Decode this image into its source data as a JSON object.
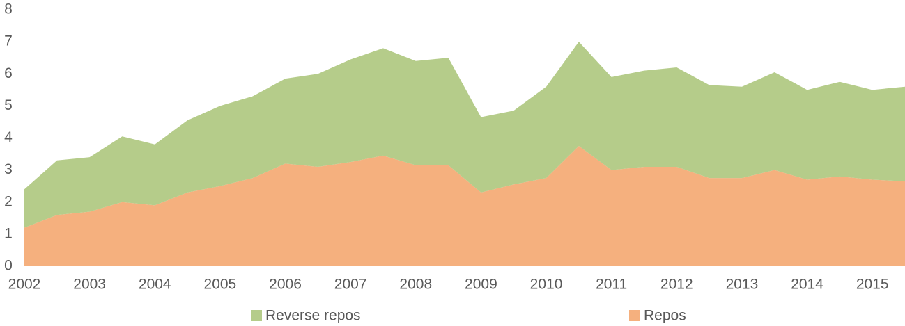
{
  "chart_data": {
    "type": "stacked-area",
    "categories": [
      "2002",
      null,
      "2003",
      null,
      "2004",
      null,
      "2005",
      null,
      "2006",
      null,
      "2007",
      null,
      "2008",
      null,
      "2009",
      null,
      "2010",
      null,
      "2011",
      null,
      "2012",
      null,
      "2013",
      null,
      "2014",
      null,
      "2015",
      null
    ],
    "series": [
      {
        "name": "Repos",
        "color": "#f5b07e",
        "values": [
          1.2,
          1.6,
          1.7,
          2.0,
          1.9,
          2.3,
          2.5,
          2.75,
          3.2,
          3.1,
          3.25,
          3.45,
          3.15,
          3.15,
          2.3,
          2.55,
          2.75,
          3.75,
          3.0,
          3.1,
          3.1,
          2.75,
          2.75,
          3.0,
          2.7,
          2.8,
          2.7,
          2.65
        ]
      },
      {
        "name": "Reverse repos",
        "color": "#b5cc8a",
        "values": [
          1.2,
          1.7,
          1.7,
          2.05,
          1.9,
          2.25,
          2.5,
          2.55,
          2.65,
          2.9,
          3.2,
          3.35,
          3.25,
          3.35,
          2.35,
          2.3,
          2.85,
          3.25,
          2.9,
          3.0,
          3.1,
          2.9,
          2.85,
          3.05,
          2.8,
          2.95,
          2.8,
          2.95
        ]
      }
    ],
    "ylim": [
      0,
      8
    ],
    "yticks": [
      0,
      1,
      2,
      3,
      4,
      5,
      6,
      7,
      8
    ],
    "grid": false
  }
}
